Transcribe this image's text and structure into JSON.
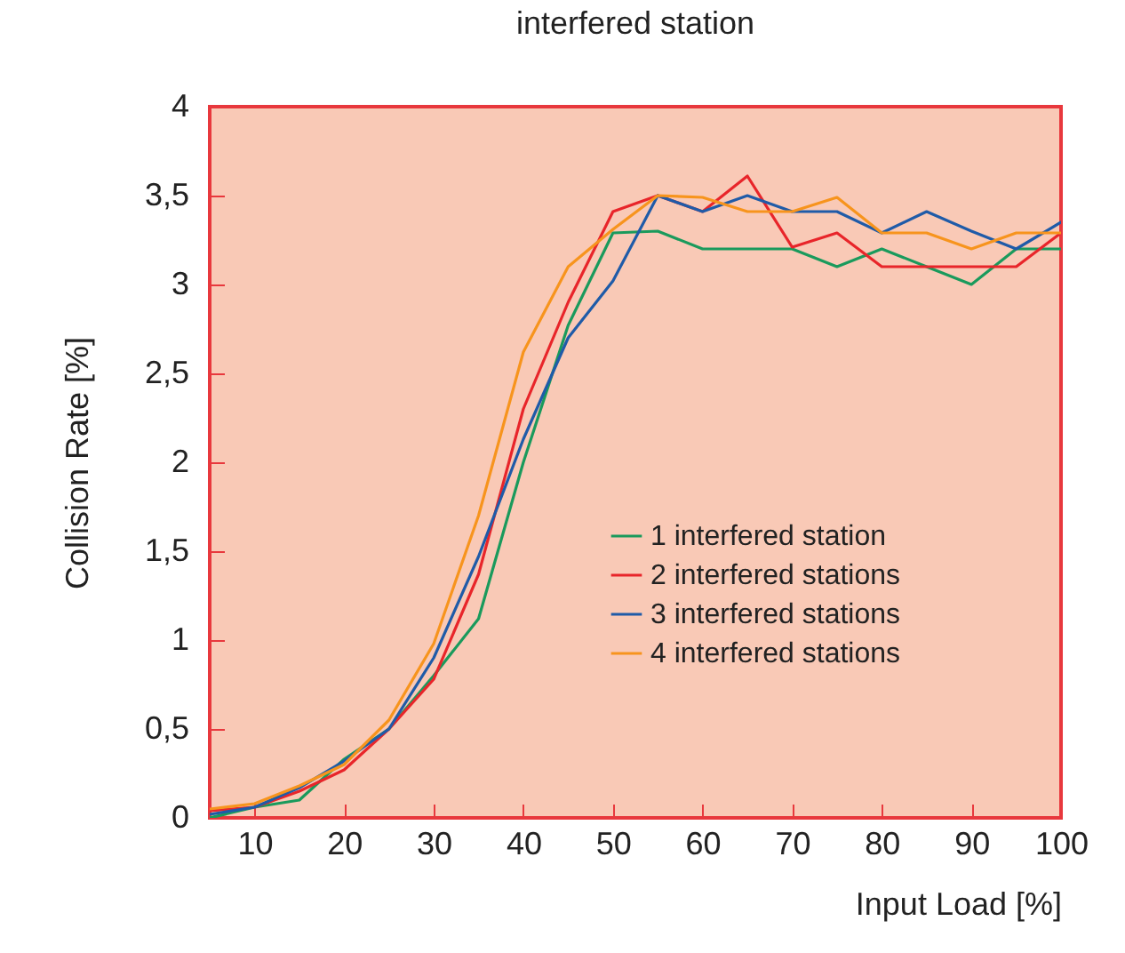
{
  "chart_data": {
    "type": "line",
    "title": "interfered station",
    "xlabel": "Input Load [%]",
    "ylabel": "Collision Rate [%]",
    "x": [
      5,
      10,
      15,
      20,
      25,
      30,
      35,
      40,
      45,
      50,
      55,
      60,
      65,
      70,
      75,
      80,
      85,
      90,
      95,
      100
    ],
    "series": [
      {
        "name": "1 interfered station",
        "color": "#1a9a5c",
        "values": [
          0.0,
          0.06,
          0.1,
          0.33,
          0.5,
          0.8,
          1.12,
          2.0,
          2.77,
          3.29,
          3.3,
          3.2,
          3.2,
          3.2,
          3.1,
          3.2,
          3.1,
          3.0,
          3.2,
          3.2
        ]
      },
      {
        "name": "2 interfered stations",
        "color": "#e8252a",
        "values": [
          0.04,
          0.06,
          0.15,
          0.27,
          0.5,
          0.78,
          1.37,
          2.3,
          2.9,
          3.41,
          3.5,
          3.41,
          3.61,
          3.21,
          3.29,
          3.1,
          3.1,
          3.1,
          3.1,
          3.29
        ]
      },
      {
        "name": "3 interfered stations",
        "color": "#1f5ba8",
        "values": [
          0.02,
          0.06,
          0.17,
          0.32,
          0.5,
          0.9,
          1.47,
          2.13,
          2.7,
          3.02,
          3.5,
          3.41,
          3.5,
          3.41,
          3.41,
          3.29,
          3.41,
          3.3,
          3.2,
          3.35
        ]
      },
      {
        "name": "4 interfered stations",
        "color": "#f7941d",
        "values": [
          0.05,
          0.08,
          0.18,
          0.3,
          0.55,
          0.98,
          1.7,
          2.62,
          3.1,
          3.31,
          3.5,
          3.49,
          3.41,
          3.41,
          3.49,
          3.29,
          3.29,
          3.2,
          3.29,
          3.29
        ]
      }
    ],
    "xlim": [
      5,
      100
    ],
    "xticks": [
      10,
      20,
      30,
      40,
      50,
      60,
      70,
      80,
      90,
      100
    ],
    "ylim": [
      0,
      4
    ],
    "yticks": [
      {
        "value": 0,
        "label": "0"
      },
      {
        "value": 0.5,
        "label": "0,5"
      },
      {
        "value": 1,
        "label": "1"
      },
      {
        "value": 1.5,
        "label": "1,5"
      },
      {
        "value": 2,
        "label": "2"
      },
      {
        "value": 2.5,
        "label": "2,5"
      },
      {
        "value": 3,
        "label": "3"
      },
      {
        "value": 3.5,
        "label": "3,5"
      },
      {
        "value": 4,
        "label": "4"
      }
    ],
    "grid": false,
    "legend": "right",
    "marker": "none",
    "line_style": "solid"
  }
}
